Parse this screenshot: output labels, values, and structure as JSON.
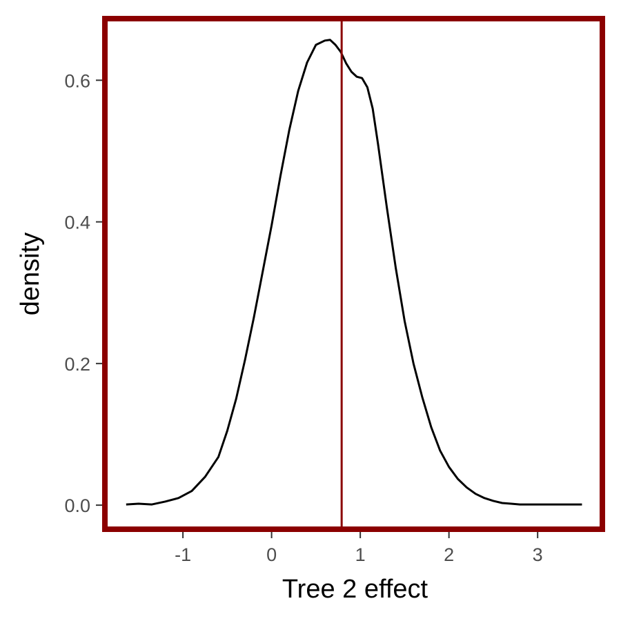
{
  "chart_data": {
    "type": "line",
    "title": "",
    "xlabel": "Tree 2 effect",
    "ylabel": "density",
    "xlim": [
      -1.88,
      3.73
    ],
    "ylim": [
      -0.034,
      0.687
    ],
    "x_ticks": [
      -1,
      0,
      1,
      2,
      3
    ],
    "x_tick_labels": [
      "-1",
      "0",
      "1",
      "2",
      "3"
    ],
    "y_ticks": [
      0.0,
      0.2,
      0.4,
      0.6
    ],
    "y_tick_labels": [
      "0.0",
      "0.2",
      "0.4",
      "0.6"
    ],
    "grid": false,
    "legend": "none",
    "vline": 0.79,
    "series": [
      {
        "x": [
          -1.64,
          -1.5,
          -1.35,
          -1.2,
          -1.05,
          -0.9,
          -0.75,
          -0.6,
          -0.5,
          -0.4,
          -0.3,
          -0.2,
          -0.1,
          0.0,
          0.1,
          0.2,
          0.3,
          0.4,
          0.5,
          0.6,
          0.66,
          0.72,
          0.78,
          0.84,
          0.9,
          0.96,
          1.02,
          1.08,
          1.14,
          1.2,
          1.3,
          1.4,
          1.5,
          1.6,
          1.7,
          1.8,
          1.9,
          2.0,
          2.1,
          2.2,
          2.3,
          2.4,
          2.5,
          2.6,
          2.7,
          2.8,
          2.9,
          3.0,
          3.2,
          3.35,
          3.5
        ],
        "y": [
          0.001,
          0.002,
          0.001,
          0.005,
          0.01,
          0.02,
          0.04,
          0.068,
          0.105,
          0.15,
          0.205,
          0.265,
          0.33,
          0.395,
          0.465,
          0.53,
          0.585,
          0.625,
          0.65,
          0.656,
          0.657,
          0.65,
          0.64,
          0.624,
          0.612,
          0.605,
          0.603,
          0.59,
          0.56,
          0.51,
          0.42,
          0.335,
          0.26,
          0.2,
          0.152,
          0.11,
          0.077,
          0.054,
          0.037,
          0.025,
          0.016,
          0.01,
          0.006,
          0.003,
          0.002,
          0.001,
          0.001,
          0.001,
          0.001,
          0.001,
          0.001
        ]
      }
    ],
    "colors": {
      "panel_border": "#8b0000",
      "vline": "#8b0000",
      "curve": "#000000",
      "ticks": "#333333",
      "tick_labels": "#4d4d4d"
    }
  }
}
